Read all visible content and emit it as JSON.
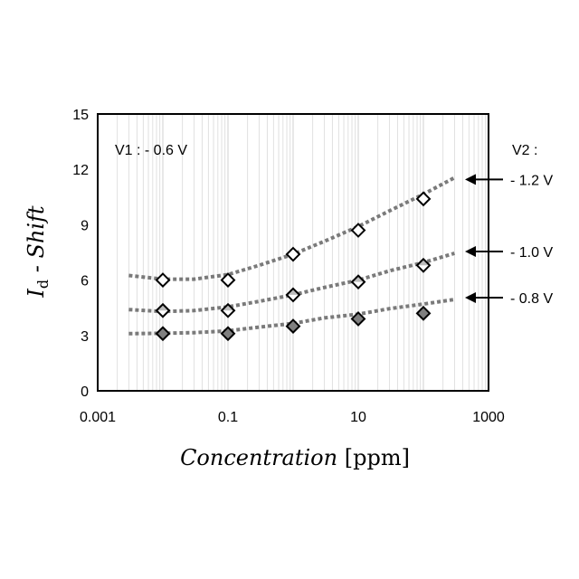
{
  "chart_data": {
    "type": "scatter",
    "title": "",
    "xlabel": {
      "italic": "Concentration",
      "normal": " [ppm]"
    },
    "ylabel": {
      "main": "I",
      "subscript": "d",
      "rest": " - Shift"
    },
    "x_scale": "log",
    "xlim": [
      0.001,
      1000
    ],
    "ylim": [
      0,
      15
    ],
    "x_ticks": [
      0.001,
      0.1,
      10,
      1000
    ],
    "x_tick_labels": [
      "0.001",
      "0.1",
      "10",
      "1000"
    ],
    "y_ticks": [
      0,
      3,
      6,
      9,
      12,
      15
    ],
    "y_tick_labels": [
      "0",
      "3",
      "6",
      "9",
      "12",
      "15"
    ],
    "grid": "vertical-log-minor",
    "annotations": {
      "v1": "V1 : - 0.6 V",
      "v2_header": "V2 :"
    },
    "series": [
      {
        "name": "- 1.2 V",
        "marker": "diamond-open",
        "x": [
          0.01,
          0.1,
          1,
          10,
          100
        ],
        "y": [
          6.0,
          6.0,
          7.4,
          8.7,
          10.4
        ],
        "trend_x": [
          0.003,
          0.01,
          0.03,
          0.1,
          0.3,
          1,
          3,
          10,
          30,
          100,
          300
        ],
        "trend_y": [
          6.25,
          6.05,
          6.05,
          6.3,
          6.8,
          7.4,
          8.1,
          8.9,
          9.75,
          10.65,
          11.55
        ]
      },
      {
        "name": "- 1.0 V",
        "marker": "diamond-half",
        "x": [
          0.01,
          0.1,
          1,
          10,
          100
        ],
        "y": [
          4.35,
          4.35,
          5.2,
          5.9,
          6.8
        ],
        "trend_x": [
          0.003,
          0.01,
          0.03,
          0.1,
          0.3,
          1,
          3,
          10,
          30,
          100,
          300
        ],
        "trend_y": [
          4.4,
          4.3,
          4.35,
          4.55,
          4.85,
          5.2,
          5.6,
          6.0,
          6.5,
          6.95,
          7.45
        ]
      },
      {
        "name": "- 0.8 V",
        "marker": "diamond-filled",
        "x": [
          0.01,
          0.1,
          1,
          10,
          100
        ],
        "y": [
          3.1,
          3.1,
          3.5,
          3.9,
          4.2
        ],
        "trend_x": [
          0.003,
          0.01,
          0.03,
          0.1,
          0.3,
          1,
          3,
          10,
          30,
          100,
          300
        ],
        "trend_y": [
          3.1,
          3.12,
          3.15,
          3.25,
          3.45,
          3.65,
          3.95,
          4.15,
          4.45,
          4.7,
          4.95
        ]
      }
    ],
    "colors": {
      "trend": "#7a7a7a",
      "marker_stroke": "#000000",
      "marker_fill_open": "#ffffff",
      "marker_fill_half": "#bdbdbd",
      "marker_fill_filled": "#7f7f7f",
      "grid": "#d9d9d9"
    }
  }
}
